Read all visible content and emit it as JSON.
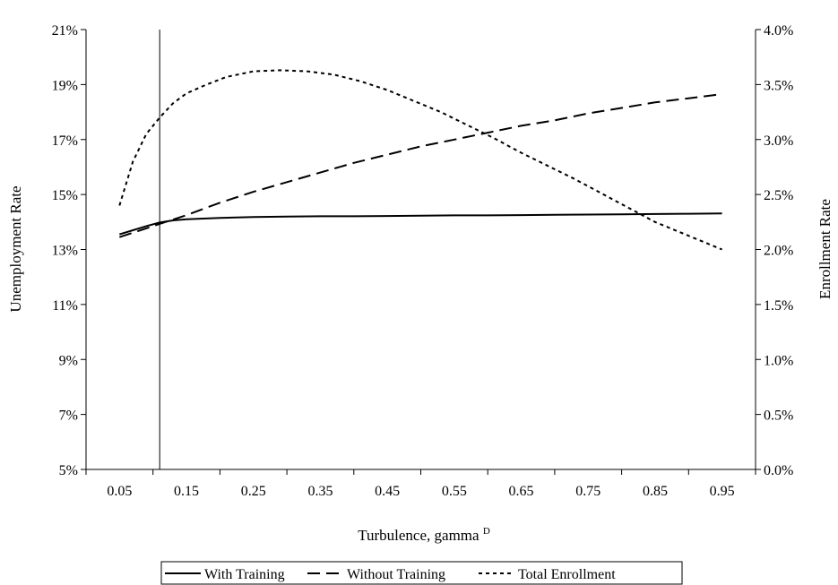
{
  "chart_data": {
    "type": "line",
    "xlabel": "Turbulence, gamma",
    "xlabel_superscript": "D",
    "ylabel_left": "Unemployment Rate",
    "ylabel_right": "Enrollment Rate",
    "x_ticks": [
      "0.05",
      "0.15",
      "0.25",
      "0.35",
      "0.45",
      "0.55",
      "0.65",
      "0.75",
      "0.85",
      "0.95"
    ],
    "y_left_ticks": [
      "5%",
      "7%",
      "9%",
      "11%",
      "13%",
      "15%",
      "17%",
      "19%",
      "21%"
    ],
    "y_right_ticks": [
      "0.0%",
      "0.5%",
      "1.0%",
      "1.5%",
      "2.0%",
      "2.5%",
      "3.0%",
      "3.5%",
      "4.0%"
    ],
    "xlim": [
      0.0,
      1.0
    ],
    "ylim_left": [
      5,
      21
    ],
    "ylim_right": [
      0.0,
      4.0
    ],
    "vertical_reference_line_x": 0.11,
    "grid": false,
    "legend_position": "bottom",
    "series": [
      {
        "name": "With Training",
        "axis": "left",
        "style": "solid",
        "x": [
          0.05,
          0.07,
          0.09,
          0.11,
          0.13,
          0.15,
          0.2,
          0.25,
          0.3,
          0.35,
          0.4,
          0.45,
          0.5,
          0.55,
          0.6,
          0.65,
          0.7,
          0.75,
          0.8,
          0.85,
          0.9,
          0.95
        ],
        "values": [
          13.55,
          13.7,
          13.85,
          13.98,
          14.06,
          14.1,
          14.15,
          14.18,
          14.2,
          14.21,
          14.21,
          14.22,
          14.23,
          14.24,
          14.24,
          14.25,
          14.26,
          14.27,
          14.28,
          14.29,
          14.3,
          14.31
        ]
      },
      {
        "name": "Without Training",
        "axis": "left",
        "style": "long-dash",
        "x": [
          0.05,
          0.1,
          0.15,
          0.2,
          0.25,
          0.3,
          0.35,
          0.4,
          0.45,
          0.5,
          0.55,
          0.6,
          0.65,
          0.7,
          0.75,
          0.8,
          0.85,
          0.9,
          0.95
        ],
        "values": [
          13.45,
          13.85,
          14.25,
          14.7,
          15.1,
          15.45,
          15.8,
          16.15,
          16.45,
          16.75,
          17.0,
          17.25,
          17.5,
          17.7,
          17.95,
          18.15,
          18.35,
          18.5,
          18.65
        ]
      },
      {
        "name": "Total Enrollment",
        "axis": "right",
        "style": "short-dash",
        "x": [
          0.05,
          0.07,
          0.09,
          0.11,
          0.13,
          0.15,
          0.18,
          0.21,
          0.25,
          0.29,
          0.33,
          0.37,
          0.41,
          0.45,
          0.49,
          0.53,
          0.57,
          0.61,
          0.65,
          0.69,
          0.73,
          0.77,
          0.81,
          0.85,
          0.89,
          0.95
        ],
        "values": [
          2.4,
          2.8,
          3.05,
          3.2,
          3.33,
          3.42,
          3.5,
          3.57,
          3.62,
          3.63,
          3.62,
          3.59,
          3.53,
          3.45,
          3.35,
          3.25,
          3.13,
          3.01,
          2.88,
          2.76,
          2.64,
          2.51,
          2.38,
          2.25,
          2.15,
          2.0
        ]
      }
    ]
  }
}
